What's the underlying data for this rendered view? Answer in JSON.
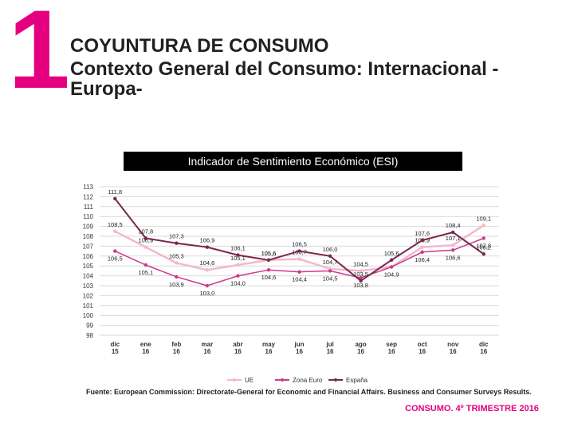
{
  "header": {
    "number": "1",
    "title": "COYUNTURA DE CONSUMO",
    "subtitle": "Contexto General del Consumo: Internacional - Europa-"
  },
  "colors": {
    "accent": "#e4007f",
    "ue": "#f2b8cc",
    "zona_euro": "#cc3a8a",
    "espana": "#7a2650"
  },
  "chart_data": {
    "type": "line",
    "title": "Indicador de Sentimiento Económico (ESI)",
    "categories": [
      "dic 15",
      "ene 16",
      "feb 16",
      "mar 16",
      "abr 16",
      "may 16",
      "jun 16",
      "jul 16",
      "ago 16",
      "sep 16",
      "oct 16",
      "nov 16",
      "dic 16"
    ],
    "ylim": [
      98,
      113
    ],
    "yticks": [
      98,
      99,
      100,
      101,
      102,
      103,
      104,
      105,
      106,
      107,
      108,
      109,
      110,
      111,
      112,
      113
    ],
    "series": [
      {
        "name": "UE",
        "values": [
          108.5,
          106.9,
          105.3,
          104.6,
          105.1,
          105.6,
          105.7,
          104.7,
          104.5,
          104.9,
          106.9,
          107.1,
          109.1
        ],
        "labels": [
          "108,5",
          "106,9",
          "105,3",
          "104,6",
          "105,1",
          "105,6",
          "105,7",
          "104,7",
          "104,5",
          "",
          "106,9",
          "107,1",
          "109,1"
        ]
      },
      {
        "name": "Zona Euro",
        "values": [
          106.5,
          105.1,
          103.9,
          103.0,
          104.0,
          104.6,
          104.4,
          104.5,
          103.8,
          104.9,
          106.4,
          106.6,
          107.8
        ],
        "labels": [
          "106,5",
          "105,1",
          "103,9",
          "103,0",
          "104,0",
          "104,6",
          "104,4",
          "104,5",
          "103,8",
          "104,9",
          "106,4",
          "106,6",
          "107,8"
        ]
      },
      {
        "name": "España",
        "values": [
          111.8,
          107.8,
          107.3,
          106.9,
          106.1,
          105.6,
          106.5,
          106.0,
          103.5,
          105.6,
          107.6,
          108.4,
          106.2
        ],
        "labels": [
          "111,8",
          "107,8",
          "107,3",
          "106,9",
          "106,1",
          "105,6",
          "106,5",
          "106,0",
          "103,5",
          "105,6",
          "107,6",
          "108,4",
          "106,2"
        ]
      }
    ],
    "legend": [
      "UE",
      "Zona Euro",
      "España"
    ],
    "legend_position": "bottom"
  },
  "source": "Fuente: European Commission: Directorate-General for Economic and Financial Affairs. Business and Consumer Surveys Results.",
  "footer": "CONSUMO. 4º TRIMESTRE 2016"
}
